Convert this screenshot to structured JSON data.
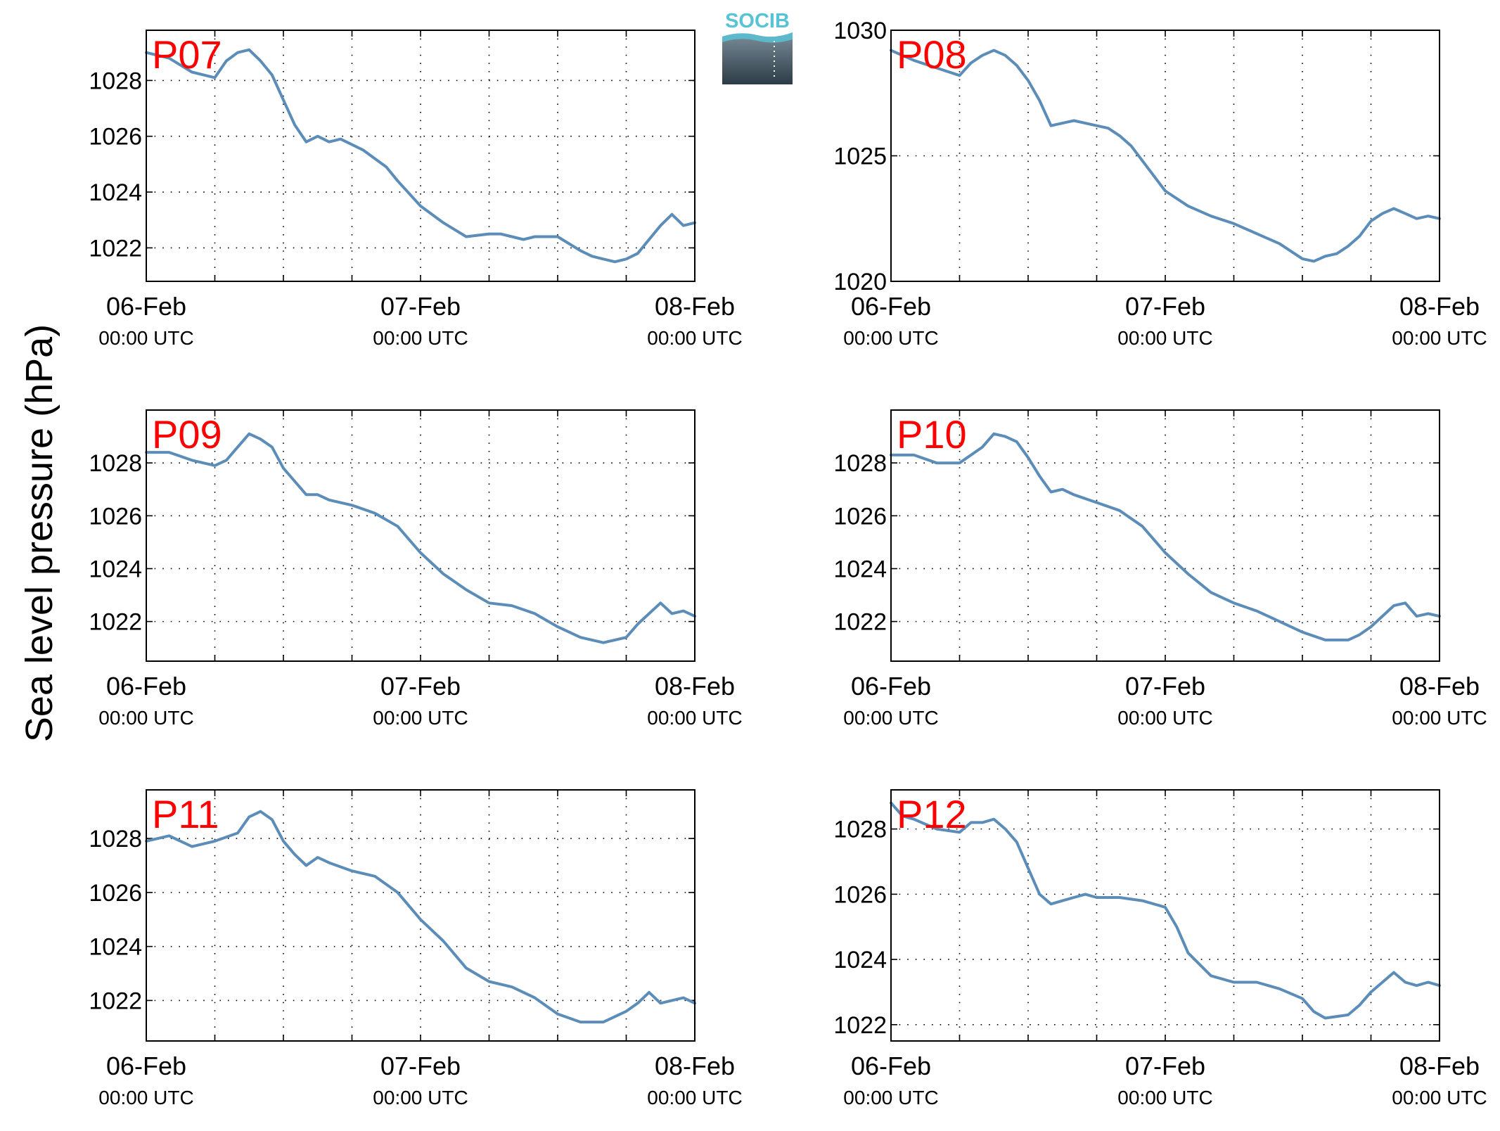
{
  "figure": {
    "ylabel": "Sea level pressure (hPa)",
    "logo_text": "SOCIB",
    "colors": {
      "line": "#5b8db8",
      "panel_label": "#ff0000",
      "axes": "#000000",
      "grid": "#000000"
    }
  },
  "chart_data": [
    {
      "type": "line",
      "label": "P07",
      "x_ticks": [
        {
          "date": "06-Feb",
          "time": "00:00 UTC"
        },
        {
          "date": "07-Feb",
          "time": "00:00 UTC"
        },
        {
          "date": "08-Feb",
          "time": "00:00 UTC"
        }
      ],
      "xlim": [
        0,
        48
      ],
      "x_grid": [
        0,
        6,
        12,
        18,
        24,
        30,
        36,
        42,
        48
      ],
      "ylim": [
        1020.8,
        1029.8
      ],
      "y_ticks": [
        1022,
        1024,
        1026,
        1028
      ],
      "x": [
        0,
        2,
        4,
        6,
        7,
        8,
        9,
        10,
        11,
        12,
        13,
        14,
        15,
        16,
        17,
        18,
        19,
        20,
        21,
        22,
        24,
        26,
        28,
        30,
        31,
        32,
        33,
        34,
        36,
        38,
        39,
        40,
        41,
        42,
        43,
        44,
        45,
        46,
        47,
        48
      ],
      "y": [
        1029.0,
        1028.8,
        1028.3,
        1028.1,
        1028.7,
        1029.0,
        1029.1,
        1028.7,
        1028.2,
        1027.3,
        1026.4,
        1025.8,
        1026.0,
        1025.8,
        1025.9,
        1025.7,
        1025.5,
        1025.2,
        1024.9,
        1024.4,
        1023.5,
        1022.9,
        1022.4,
        1022.5,
        1022.5,
        1022.4,
        1022.3,
        1022.4,
        1022.4,
        1021.9,
        1021.7,
        1021.6,
        1021.5,
        1021.6,
        1021.8,
        1022.3,
        1022.8,
        1023.2,
        1022.8,
        1022.9
      ]
    },
    {
      "type": "line",
      "label": "P08",
      "x_ticks": [
        {
          "date": "06-Feb",
          "time": "00:00 UTC"
        },
        {
          "date": "07-Feb",
          "time": "00:00 UTC"
        },
        {
          "date": "08-Feb",
          "time": "00:00 UTC"
        }
      ],
      "xlim": [
        0,
        48
      ],
      "x_grid": [
        0,
        6,
        12,
        18,
        24,
        30,
        36,
        42,
        48
      ],
      "ylim": [
        1020,
        1030
      ],
      "y_ticks": [
        1020,
        1025,
        1030
      ],
      "x": [
        0,
        2,
        4,
        6,
        7,
        8,
        9,
        10,
        11,
        12,
        13,
        14,
        15,
        16,
        17,
        18,
        19,
        20,
        21,
        22,
        24,
        26,
        28,
        30,
        32,
        34,
        36,
        37,
        38,
        39,
        40,
        41,
        42,
        43,
        44,
        45,
        46,
        47,
        48
      ],
      "y": [
        1029.2,
        1028.8,
        1028.5,
        1028.2,
        1028.7,
        1029.0,
        1029.2,
        1029.0,
        1028.6,
        1028.0,
        1027.2,
        1026.2,
        1026.3,
        1026.4,
        1026.3,
        1026.2,
        1026.1,
        1025.8,
        1025.4,
        1024.8,
        1023.6,
        1023.0,
        1022.6,
        1022.3,
        1021.9,
        1021.5,
        1020.9,
        1020.8,
        1021.0,
        1021.1,
        1021.4,
        1021.8,
        1022.4,
        1022.7,
        1022.9,
        1022.7,
        1022.5,
        1022.6,
        1022.5
      ]
    },
    {
      "type": "line",
      "label": "P09",
      "x_ticks": [
        {
          "date": "06-Feb",
          "time": "00:00 UTC"
        },
        {
          "date": "07-Feb",
          "time": "00:00 UTC"
        },
        {
          "date": "08-Feb",
          "time": "00:00 UTC"
        }
      ],
      "xlim": [
        0,
        48
      ],
      "x_grid": [
        0,
        6,
        12,
        18,
        24,
        30,
        36,
        42,
        48
      ],
      "ylim": [
        1020.5,
        1030
      ],
      "y_ticks": [
        1022,
        1024,
        1026,
        1028
      ],
      "x": [
        0,
        2,
        4,
        6,
        7,
        8,
        9,
        10,
        11,
        12,
        13,
        14,
        15,
        16,
        18,
        20,
        22,
        24,
        26,
        28,
        30,
        32,
        34,
        36,
        38,
        39,
        40,
        41,
        42,
        43,
        44,
        45,
        46,
        47,
        48
      ],
      "y": [
        1028.4,
        1028.4,
        1028.1,
        1027.9,
        1028.1,
        1028.6,
        1029.1,
        1028.9,
        1028.6,
        1027.8,
        1027.3,
        1026.8,
        1026.8,
        1026.6,
        1026.4,
        1026.1,
        1025.6,
        1024.6,
        1023.8,
        1023.2,
        1022.7,
        1022.6,
        1022.3,
        1021.8,
        1021.4,
        1021.3,
        1021.2,
        1021.3,
        1021.4,
        1021.9,
        1022.3,
        1022.7,
        1022.3,
        1022.4,
        1022.2
      ]
    },
    {
      "type": "line",
      "label": "P10",
      "x_ticks": [
        {
          "date": "06-Feb",
          "time": "00:00 UTC"
        },
        {
          "date": "07-Feb",
          "time": "00:00 UTC"
        },
        {
          "date": "08-Feb",
          "time": "00:00 UTC"
        }
      ],
      "xlim": [
        0,
        48
      ],
      "x_grid": [
        0,
        6,
        12,
        18,
        24,
        30,
        36,
        42,
        48
      ],
      "ylim": [
        1020.5,
        1030
      ],
      "y_ticks": [
        1022,
        1024,
        1026,
        1028
      ],
      "x": [
        0,
        2,
        4,
        6,
        7,
        8,
        9,
        10,
        11,
        12,
        13,
        14,
        15,
        16,
        18,
        20,
        22,
        24,
        26,
        28,
        30,
        32,
        34,
        36,
        38,
        39,
        40,
        41,
        42,
        43,
        44,
        45,
        46,
        47,
        48
      ],
      "y": [
        1028.3,
        1028.3,
        1028.0,
        1028.0,
        1028.3,
        1028.6,
        1029.1,
        1029.0,
        1028.8,
        1028.2,
        1027.5,
        1026.9,
        1027.0,
        1026.8,
        1026.5,
        1026.2,
        1025.6,
        1024.6,
        1023.8,
        1023.1,
        1022.7,
        1022.4,
        1022.0,
        1021.6,
        1021.3,
        1021.3,
        1021.3,
        1021.5,
        1021.8,
        1022.2,
        1022.6,
        1022.7,
        1022.2,
        1022.3,
        1022.2
      ]
    },
    {
      "type": "line",
      "label": "P11",
      "x_ticks": [
        {
          "date": "06-Feb",
          "time": "00:00 UTC"
        },
        {
          "date": "07-Feb",
          "time": "00:00 UTC"
        },
        {
          "date": "08-Feb",
          "time": "00:00 UTC"
        }
      ],
      "xlim": [
        0,
        48
      ],
      "x_grid": [
        0,
        6,
        12,
        18,
        24,
        30,
        36,
        42,
        48
      ],
      "ylim": [
        1020.5,
        1029.8
      ],
      "y_ticks": [
        1022,
        1024,
        1026,
        1028
      ],
      "x": [
        0,
        2,
        4,
        6,
        8,
        9,
        10,
        11,
        12,
        13,
        14,
        15,
        16,
        18,
        20,
        22,
        24,
        26,
        28,
        30,
        32,
        34,
        36,
        38,
        40,
        42,
        43,
        44,
        45,
        46,
        47,
        48
      ],
      "y": [
        1027.9,
        1028.1,
        1027.7,
        1027.9,
        1028.2,
        1028.8,
        1029.0,
        1028.7,
        1027.9,
        1027.4,
        1027.0,
        1027.3,
        1027.1,
        1026.8,
        1026.6,
        1026.0,
        1025.0,
        1024.2,
        1023.2,
        1022.7,
        1022.5,
        1022.1,
        1021.5,
        1021.2,
        1021.2,
        1021.6,
        1021.9,
        1022.3,
        1021.9,
        1022.0,
        1022.1,
        1021.9
      ]
    },
    {
      "type": "line",
      "label": "P12",
      "x_ticks": [
        {
          "date": "06-Feb",
          "time": "00:00 UTC"
        },
        {
          "date": "07-Feb",
          "time": "00:00 UTC"
        },
        {
          "date": "08-Feb",
          "time": "00:00 UTC"
        }
      ],
      "xlim": [
        0,
        48
      ],
      "x_grid": [
        0,
        6,
        12,
        18,
        24,
        30,
        36,
        42,
        48
      ],
      "ylim": [
        1021.5,
        1029.2
      ],
      "y_ticks": [
        1022,
        1024,
        1026,
        1028
      ],
      "x": [
        0,
        1,
        2,
        4,
        6,
        7,
        8,
        9,
        10,
        11,
        12,
        13,
        14,
        15,
        16,
        17,
        18,
        20,
        22,
        24,
        25,
        26,
        28,
        30,
        32,
        34,
        36,
        37,
        38,
        40,
        41,
        42,
        43,
        44,
        45,
        46,
        47,
        48
      ],
      "y": [
        1028.8,
        1028.4,
        1028.3,
        1028.0,
        1027.9,
        1028.2,
        1028.2,
        1028.3,
        1028.0,
        1027.6,
        1026.8,
        1026.0,
        1025.7,
        1025.8,
        1025.9,
        1026.0,
        1025.9,
        1025.9,
        1025.8,
        1025.6,
        1025.0,
        1024.2,
        1023.5,
        1023.3,
        1023.3,
        1023.1,
        1022.8,
        1022.4,
        1022.2,
        1022.3,
        1022.6,
        1023.0,
        1023.3,
        1023.6,
        1023.3,
        1023.2,
        1023.3,
        1023.2
      ]
    }
  ]
}
